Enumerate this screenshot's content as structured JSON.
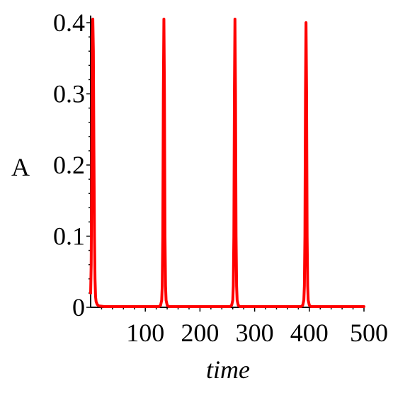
{
  "chart_data": {
    "type": "line",
    "title": "",
    "xlabel": "time",
    "ylabel": "A",
    "xlim": [
      0,
      500
    ],
    "ylim": [
      0,
      0.41
    ],
    "grid": false,
    "x_ticks": [
      100,
      200,
      300,
      400,
      500
    ],
    "x_tick_labels": [
      "100",
      "200",
      "300",
      "400",
      "500"
    ],
    "y_ticks": [
      0,
      0.1,
      0.2,
      0.3,
      0.4
    ],
    "y_tick_labels": [
      "0",
      "0.1",
      "0.2",
      "0.3",
      "0.4"
    ],
    "series": [
      {
        "color": "#ff0000",
        "x": [
          0,
          1,
          2,
          3,
          4,
          5,
          6,
          7,
          8,
          9,
          10,
          12,
          15,
          25,
          125,
          128,
          130,
          131,
          132,
          133,
          134,
          135,
          136,
          137,
          138,
          140,
          143,
          155,
          255,
          258,
          260,
          261,
          262,
          263,
          264,
          265,
          266,
          267,
          268,
          270,
          273,
          285,
          385,
          388,
          390,
          391,
          392,
          393,
          394,
          395,
          396,
          397,
          398,
          400,
          403,
          415,
          500
        ],
        "y": [
          0.02,
          0.06,
          0.2,
          0.38,
          0.405,
          0.36,
          0.22,
          0.1,
          0.04,
          0.015,
          0.008,
          0.004,
          0.002,
          0.001,
          0.001,
          0.003,
          0.01,
          0.03,
          0.1,
          0.3,
          0.405,
          0.3,
          0.1,
          0.03,
          0.01,
          0.003,
          0.001,
          0.001,
          0.001,
          0.003,
          0.01,
          0.03,
          0.1,
          0.3,
          0.405,
          0.3,
          0.1,
          0.03,
          0.01,
          0.003,
          0.001,
          0.001,
          0.001,
          0.003,
          0.01,
          0.03,
          0.1,
          0.3,
          0.4,
          0.3,
          0.1,
          0.03,
          0.01,
          0.003,
          0.001,
          0.001,
          0.001
        ]
      }
    ]
  }
}
